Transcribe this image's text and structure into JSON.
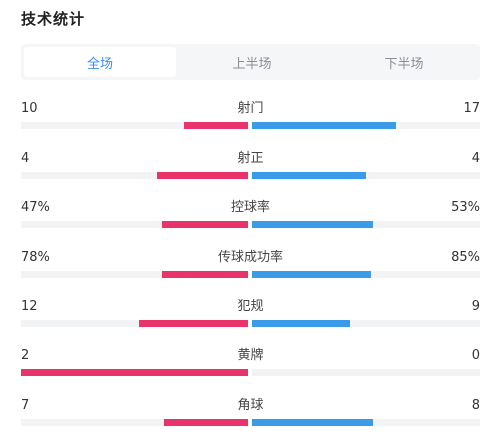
{
  "header": {
    "title": "技术统计"
  },
  "tabs": [
    {
      "label": "全场",
      "active": true
    },
    {
      "label": "上半场",
      "active": false
    },
    {
      "label": "下半场",
      "active": false
    }
  ],
  "colors": {
    "home": "#e8336b",
    "away": "#3a9be8",
    "track": "#f2f3f5",
    "accent": "#3d8df5"
  },
  "stats": [
    {
      "label": "射门",
      "home": "10",
      "away": "17",
      "home_fill": 0.28,
      "away_fill": 0.63
    },
    {
      "label": "射正",
      "home": "4",
      "away": "4",
      "home_fill": 0.4,
      "away_fill": 0.5
    },
    {
      "label": "控球率",
      "home": "47%",
      "away": "53%",
      "home_fill": 0.38,
      "away_fill": 0.53
    },
    {
      "label": "传球成功率",
      "home": "78%",
      "away": "85%",
      "home_fill": 0.38,
      "away_fill": 0.52
    },
    {
      "label": "犯规",
      "home": "12",
      "away": "9",
      "home_fill": 0.48,
      "away_fill": 0.43
    },
    {
      "label": "黄牌",
      "home": "2",
      "away": "0",
      "home_fill": 1.0,
      "away_fill": 0.0
    },
    {
      "label": "角球",
      "home": "7",
      "away": "8",
      "home_fill": 0.37,
      "away_fill": 0.53
    }
  ]
}
